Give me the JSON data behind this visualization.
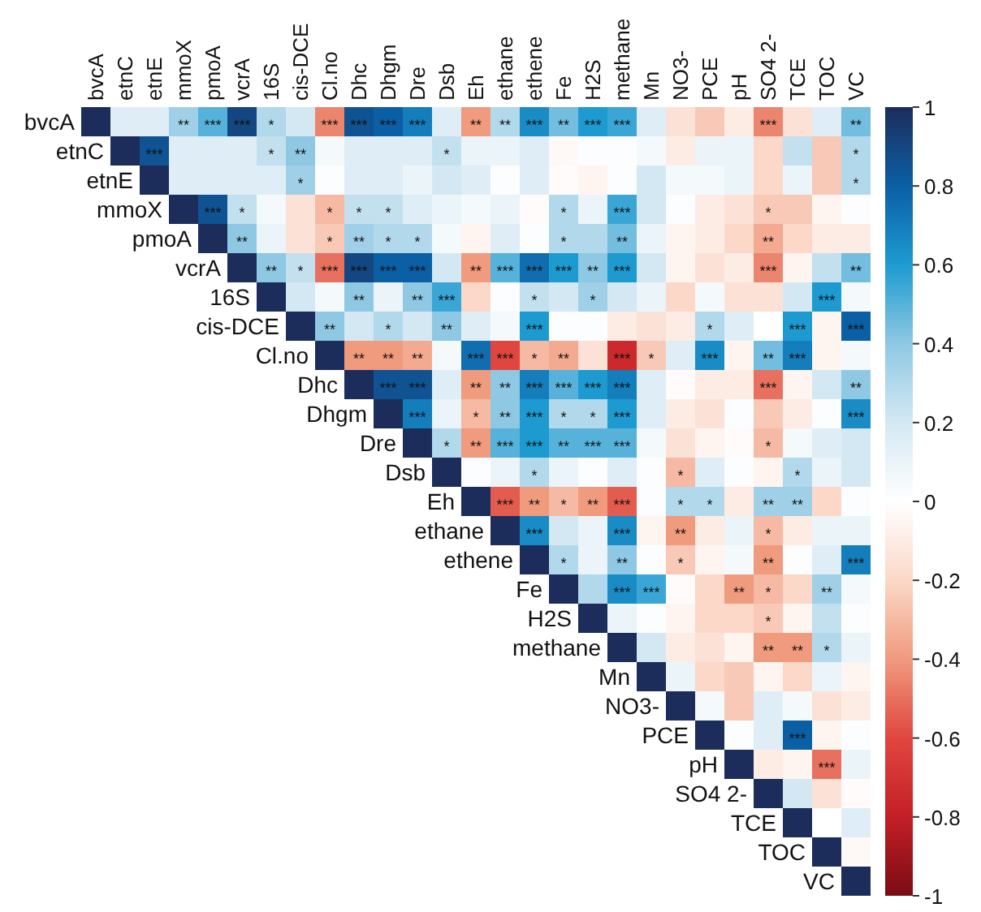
{
  "chart_data": {
    "type": "heatmap",
    "categories": [
      "bvcA",
      "etnC",
      "etnE",
      "mmoX",
      "pmoA",
      "vcrA",
      "16S",
      "cis-DCE",
      "Cl.no",
      "Dhc",
      "Dhgm",
      "Dre",
      "Dsb",
      "Eh",
      "ethane",
      "ethene",
      "Fe",
      "H2S",
      "methane",
      "Mn",
      "NO3-",
      "PCE",
      "pH",
      "SO4 2-",
      "TCE",
      "TOC",
      "VC"
    ],
    "y_categories": [
      "bvcA",
      "etnC",
      "etnE",
      "mmoX",
      "pmoA",
      "vcrA",
      "16S",
      "cis-DCE",
      "Cl.no",
      "Dhc",
      "Dhgm",
      "Dre",
      "Dsb",
      "Eh",
      "ethane",
      "ethene",
      "Fe",
      "H2S",
      "methane",
      "Mn",
      "NO3-",
      "PCE",
      "pH",
      "SO4 2-",
      "TCE",
      "TOC",
      "VC"
    ],
    "clim": [
      -1,
      1
    ],
    "cticks": [
      -1,
      -0.8,
      -0.6,
      -0.4,
      -0.2,
      0,
      0.2,
      0.4,
      0.6,
      0.8,
      1
    ],
    "cells": [
      [
        1,
        0.15,
        0.15,
        0.35,
        0.5,
        0.9,
        0.3,
        0.2,
        -0.45,
        0.85,
        0.8,
        0.7,
        0.15,
        -0.4,
        0.3,
        0.65,
        0.45,
        0.6,
        0.55,
        0.15,
        -0.15,
        -0.25,
        -0.1,
        -0.45,
        -0.15,
        0.15,
        0.45
      ],
      [
        null,
        1,
        0.85,
        0.15,
        0.15,
        0.15,
        0.25,
        0.4,
        0.05,
        0.15,
        0.15,
        0.15,
        0.25,
        0.1,
        0.1,
        0.15,
        -0.03,
        0.02,
        0.02,
        0.05,
        -0.1,
        0.1,
        0.1,
        -0.2,
        0.25,
        -0.25,
        0.3
      ],
      [
        null,
        null,
        1,
        0.15,
        0.15,
        0.15,
        0.15,
        0.35,
        0.02,
        0.15,
        0.15,
        0.1,
        0.2,
        0.15,
        0.02,
        0.15,
        -0.02,
        -0.05,
        0.02,
        0.2,
        0.05,
        0.05,
        0.1,
        -0.2,
        0.1,
        -0.25,
        0.3
      ],
      [
        null,
        null,
        null,
        1,
        0.85,
        0.25,
        0.05,
        -0.15,
        -0.3,
        0.25,
        0.25,
        0.15,
        0.1,
        0.05,
        0.1,
        -0.02,
        0.3,
        0.1,
        0.55,
        0.2,
        0.02,
        -0.1,
        -0.15,
        -0.25,
        -0.25,
        -0.05,
        0.02
      ],
      [
        null,
        null,
        null,
        null,
        1,
        0.4,
        0.1,
        -0.15,
        -0.25,
        0.35,
        0.3,
        0.3,
        0.05,
        -0.05,
        0.15,
        0.02,
        0.3,
        0.3,
        0.45,
        0.1,
        -0.05,
        -0.1,
        -0.2,
        -0.35,
        -0.2,
        -0.1,
        -0.1
      ],
      [
        null,
        null,
        null,
        null,
        null,
        1,
        0.4,
        0.25,
        -0.5,
        0.9,
        0.8,
        0.8,
        0.2,
        -0.4,
        0.5,
        0.75,
        0.6,
        0.4,
        0.6,
        0.2,
        -0.05,
        -0.15,
        -0.1,
        -0.45,
        -0.05,
        0.25,
        0.45
      ],
      [
        null,
        null,
        null,
        null,
        null,
        null,
        1,
        0.2,
        0.05,
        0.4,
        0.1,
        0.4,
        0.55,
        -0.2,
        0.02,
        0.25,
        0.2,
        0.35,
        0.2,
        0.1,
        -0.2,
        0.05,
        -0.15,
        -0.15,
        0.2,
        0.6,
        0.05
      ],
      [
        null,
        null,
        null,
        null,
        null,
        null,
        null,
        1,
        0.4,
        0.2,
        0.3,
        0.2,
        0.4,
        0.15,
        0.05,
        0.6,
        0.02,
        0.02,
        -0.1,
        -0.15,
        -0.1,
        0.3,
        0.15,
        0,
        0.6,
        -0.05,
        0.8
      ],
      [
        null,
        null,
        null,
        null,
        null,
        null,
        null,
        null,
        1,
        -0.4,
        -0.4,
        -0.35,
        0.05,
        0.75,
        -0.6,
        -0.3,
        -0.35,
        -0.15,
        -0.75,
        -0.25,
        0.15,
        0.65,
        -0.05,
        0.45,
        0.7,
        -0.05,
        0.05
      ],
      [
        null,
        null,
        null,
        null,
        null,
        null,
        null,
        null,
        null,
        1,
        0.85,
        0.85,
        0.15,
        -0.4,
        0.4,
        0.7,
        0.5,
        0.6,
        0.7,
        0.15,
        -0.02,
        -0.1,
        -0.1,
        -0.5,
        -0.05,
        0.2,
        0.4
      ],
      [
        null,
        null,
        null,
        null,
        null,
        null,
        null,
        null,
        null,
        null,
        1,
        0.7,
        0.1,
        -0.3,
        0.4,
        0.6,
        0.3,
        0.3,
        0.6,
        0.15,
        -0.1,
        -0.15,
        0.02,
        -0.25,
        -0.1,
        0.02,
        0.65
      ],
      [
        null,
        null,
        null,
        null,
        null,
        null,
        null,
        null,
        null,
        null,
        null,
        1,
        0.3,
        -0.4,
        0.5,
        0.6,
        0.5,
        0.5,
        0.5,
        0.05,
        -0.15,
        -0.05,
        -0.02,
        -0.3,
        0.05,
        0.15,
        0.2
      ],
      [
        null,
        null,
        null,
        null,
        null,
        null,
        null,
        null,
        null,
        null,
        null,
        null,
        1,
        0.02,
        0.1,
        0.3,
        0.1,
        0.02,
        0.15,
        0.02,
        -0.3,
        0.15,
        0.02,
        -0.05,
        0.3,
        0.1,
        0.2
      ],
      [
        null,
        null,
        null,
        null,
        null,
        null,
        null,
        null,
        null,
        null,
        null,
        null,
        null,
        1,
        -0.55,
        -0.4,
        -0.3,
        -0.4,
        -0.55,
        0.02,
        0.3,
        0.3,
        -0.1,
        0.35,
        0.35,
        -0.2,
        0.02
      ],
      [
        null,
        null,
        null,
        null,
        null,
        null,
        null,
        null,
        null,
        null,
        null,
        null,
        null,
        null,
        1,
        0.65,
        0.2,
        0.1,
        0.65,
        -0.05,
        -0.4,
        -0.1,
        0.1,
        -0.3,
        -0.1,
        0.1,
        0.1
      ],
      [
        null,
        null,
        null,
        null,
        null,
        null,
        null,
        null,
        null,
        null,
        null,
        null,
        null,
        null,
        null,
        1,
        0.3,
        0.1,
        0.4,
        0.02,
        -0.25,
        -0.05,
        0.05,
        -0.4,
        0.02,
        0.15,
        0.7
      ],
      [
        null,
        null,
        null,
        null,
        null,
        null,
        null,
        null,
        null,
        null,
        null,
        null,
        null,
        null,
        null,
        null,
        1,
        0.3,
        0.65,
        0.55,
        -0.02,
        -0.2,
        -0.4,
        -0.3,
        -0.2,
        0.35,
        0.05
      ],
      [
        null,
        null,
        null,
        null,
        null,
        null,
        null,
        null,
        null,
        null,
        null,
        null,
        null,
        null,
        null,
        null,
        null,
        1,
        0.1,
        0.02,
        -0.05,
        -0.2,
        -0.2,
        -0.25,
        -0.05,
        0.25,
        0.02
      ],
      [
        null,
        null,
        null,
        null,
        null,
        null,
        null,
        null,
        null,
        null,
        null,
        null,
        null,
        null,
        null,
        null,
        null,
        null,
        1,
        0.2,
        -0.1,
        -0.15,
        -0.05,
        -0.4,
        -0.4,
        0.3,
        0.1
      ],
      [
        null,
        null,
        null,
        null,
        null,
        null,
        null,
        null,
        null,
        null,
        null,
        null,
        null,
        null,
        null,
        null,
        null,
        null,
        null,
        1,
        0.1,
        -0.2,
        -0.25,
        -0.05,
        -0.2,
        0.1,
        -0.05
      ],
      [
        null,
        null,
        null,
        null,
        null,
        null,
        null,
        null,
        null,
        null,
        null,
        null,
        null,
        null,
        null,
        null,
        null,
        null,
        null,
        null,
        1,
        0.05,
        -0.25,
        0.15,
        0.05,
        -0.15,
        -0.1
      ],
      [
        null,
        null,
        null,
        null,
        null,
        null,
        null,
        null,
        null,
        null,
        null,
        null,
        null,
        null,
        null,
        null,
        null,
        null,
        null,
        null,
        null,
        1,
        0.02,
        0.15,
        0.8,
        -0.05,
        0.02
      ],
      [
        null,
        null,
        null,
        null,
        null,
        null,
        null,
        null,
        null,
        null,
        null,
        null,
        null,
        null,
        null,
        null,
        null,
        null,
        null,
        null,
        null,
        null,
        1,
        -0.1,
        -0.05,
        -0.5,
        0.1
      ],
      [
        null,
        null,
        null,
        null,
        null,
        null,
        null,
        null,
        null,
        null,
        null,
        null,
        null,
        null,
        null,
        null,
        null,
        null,
        null,
        null,
        null,
        null,
        null,
        1,
        0.2,
        -0.15,
        -0.02
      ],
      [
        null,
        null,
        null,
        null,
        null,
        null,
        null,
        null,
        null,
        null,
        null,
        null,
        null,
        null,
        null,
        null,
        null,
        null,
        null,
        null,
        null,
        null,
        null,
        null,
        1,
        0,
        0.15
      ],
      [
        null,
        null,
        null,
        null,
        null,
        null,
        null,
        null,
        null,
        null,
        null,
        null,
        null,
        null,
        null,
        null,
        null,
        null,
        null,
        null,
        null,
        null,
        null,
        null,
        null,
        1,
        -0.03
      ],
      [
        null,
        null,
        null,
        null,
        null,
        null,
        null,
        null,
        null,
        null,
        null,
        null,
        null,
        null,
        null,
        null,
        null,
        null,
        null,
        null,
        null,
        null,
        null,
        null,
        null,
        null,
        1
      ]
    ],
    "cell_labels": [
      [
        null,
        null,
        null,
        "**",
        "***",
        "***",
        "*",
        null,
        "***",
        "***",
        "***",
        "***",
        null,
        "**",
        "**",
        "***",
        "**",
        "***",
        "***",
        null,
        null,
        null,
        null,
        "***",
        null,
        null,
        "**"
      ],
      [
        null,
        null,
        "***",
        null,
        null,
        null,
        "*",
        "**",
        null,
        null,
        null,
        null,
        "*",
        null,
        null,
        null,
        null,
        null,
        null,
        null,
        null,
        null,
        null,
        null,
        null,
        null,
        "*"
      ],
      [
        null,
        null,
        null,
        null,
        null,
        null,
        null,
        "*",
        null,
        null,
        null,
        null,
        null,
        null,
        null,
        null,
        null,
        null,
        null,
        null,
        null,
        null,
        null,
        null,
        null,
        null,
        "*"
      ],
      [
        null,
        null,
        null,
        null,
        "***",
        "*",
        null,
        null,
        "*",
        "*",
        "*",
        null,
        null,
        null,
        null,
        null,
        "*",
        null,
        "***",
        null,
        null,
        null,
        null,
        "*",
        null,
        null,
        null
      ],
      [
        null,
        null,
        null,
        null,
        null,
        "**",
        null,
        null,
        "*",
        "**",
        "*",
        "*",
        null,
        null,
        null,
        null,
        "*",
        null,
        "**",
        null,
        null,
        null,
        null,
        "**",
        null,
        null,
        null
      ],
      [
        null,
        null,
        null,
        null,
        null,
        null,
        "**",
        "*",
        "***",
        "***",
        "***",
        "***",
        null,
        "**",
        "***",
        "***",
        "***",
        "**",
        "***",
        null,
        null,
        null,
        null,
        "***",
        null,
        null,
        "**"
      ],
      [
        null,
        null,
        null,
        null,
        null,
        null,
        null,
        null,
        null,
        "**",
        null,
        "**",
        "***",
        null,
        null,
        "*",
        null,
        "*",
        null,
        null,
        null,
        null,
        null,
        null,
        null,
        "***",
        null
      ],
      [
        null,
        null,
        null,
        null,
        null,
        null,
        null,
        null,
        "**",
        null,
        "*",
        null,
        "**",
        null,
        null,
        "***",
        null,
        null,
        null,
        null,
        null,
        "*",
        null,
        null,
        "***",
        null,
        "***"
      ],
      [
        null,
        null,
        null,
        null,
        null,
        null,
        null,
        null,
        null,
        "**",
        "**",
        "**",
        null,
        "***",
        "***",
        "*",
        "**",
        null,
        "***",
        "*",
        null,
        "***",
        null,
        "**",
        "***",
        null,
        null
      ],
      [
        null,
        null,
        null,
        null,
        null,
        null,
        null,
        null,
        null,
        null,
        "***",
        "***",
        null,
        "**",
        "**",
        "***",
        "***",
        "***",
        "***",
        null,
        null,
        null,
        null,
        "***",
        null,
        null,
        "**"
      ],
      [
        null,
        null,
        null,
        null,
        null,
        null,
        null,
        null,
        null,
        null,
        null,
        "***",
        null,
        "*",
        "**",
        "***",
        "*",
        "*",
        "***",
        null,
        null,
        null,
        null,
        null,
        null,
        null,
        "***"
      ],
      [
        null,
        null,
        null,
        null,
        null,
        null,
        null,
        null,
        null,
        null,
        null,
        null,
        "*",
        "**",
        "***",
        "***",
        "**",
        "***",
        "***",
        null,
        null,
        null,
        null,
        "*",
        null,
        null,
        null
      ],
      [
        null,
        null,
        null,
        null,
        null,
        null,
        null,
        null,
        null,
        null,
        null,
        null,
        null,
        null,
        null,
        "*",
        null,
        null,
        null,
        null,
        "*",
        null,
        null,
        null,
        "*",
        null,
        null
      ],
      [
        null,
        null,
        null,
        null,
        null,
        null,
        null,
        null,
        null,
        null,
        null,
        null,
        null,
        null,
        "***",
        "**",
        "*",
        "**",
        "***",
        null,
        "*",
        "*",
        null,
        "**",
        "**",
        null,
        null
      ],
      [
        null,
        null,
        null,
        null,
        null,
        null,
        null,
        null,
        null,
        null,
        null,
        null,
        null,
        null,
        null,
        "***",
        null,
        null,
        "***",
        null,
        "**",
        null,
        null,
        "*",
        null,
        null,
        null
      ],
      [
        null,
        null,
        null,
        null,
        null,
        null,
        null,
        null,
        null,
        null,
        null,
        null,
        null,
        null,
        null,
        null,
        "*",
        null,
        "**",
        null,
        "*",
        null,
        null,
        "**",
        null,
        null,
        "***"
      ],
      [
        null,
        null,
        null,
        null,
        null,
        null,
        null,
        null,
        null,
        null,
        null,
        null,
        null,
        null,
        null,
        null,
        null,
        null,
        "***",
        "***",
        null,
        null,
        "**",
        "*",
        null,
        "**",
        null
      ],
      [
        null,
        null,
        null,
        null,
        null,
        null,
        null,
        null,
        null,
        null,
        null,
        null,
        null,
        null,
        null,
        null,
        null,
        null,
        null,
        null,
        null,
        null,
        null,
        "*",
        null,
        null,
        null
      ],
      [
        null,
        null,
        null,
        null,
        null,
        null,
        null,
        null,
        null,
        null,
        null,
        null,
        null,
        null,
        null,
        null,
        null,
        null,
        null,
        null,
        null,
        null,
        null,
        "**",
        "**",
        "*",
        null
      ],
      [
        null,
        null,
        null,
        null,
        null,
        null,
        null,
        null,
        null,
        null,
        null,
        null,
        null,
        null,
        null,
        null,
        null,
        null,
        null,
        null,
        null,
        null,
        null,
        null,
        null,
        null,
        null
      ],
      [
        null,
        null,
        null,
        null,
        null,
        null,
        null,
        null,
        null,
        null,
        null,
        null,
        null,
        null,
        null,
        null,
        null,
        null,
        null,
        null,
        null,
        null,
        null,
        null,
        null,
        null,
        null
      ],
      [
        null,
        null,
        null,
        null,
        null,
        null,
        null,
        null,
        null,
        null,
        null,
        null,
        null,
        null,
        null,
        null,
        null,
        null,
        null,
        null,
        null,
        null,
        null,
        null,
        "***",
        null,
        null
      ],
      [
        null,
        null,
        null,
        null,
        null,
        null,
        null,
        null,
        null,
        null,
        null,
        null,
        null,
        null,
        null,
        null,
        null,
        null,
        null,
        null,
        null,
        null,
        null,
        null,
        null,
        "***",
        null
      ],
      [
        null,
        null,
        null,
        null,
        null,
        null,
        null,
        null,
        null,
        null,
        null,
        null,
        null,
        null,
        null,
        null,
        null,
        null,
        null,
        null,
        null,
        null,
        null,
        null,
        null,
        null,
        null
      ],
      [
        null,
        null,
        null,
        null,
        null,
        null,
        null,
        null,
        null,
        null,
        null,
        null,
        null,
        null,
        null,
        null,
        null,
        null,
        null,
        null,
        null,
        null,
        null,
        null,
        null,
        null,
        null
      ],
      [
        null,
        null,
        null,
        null,
        null,
        null,
        null,
        null,
        null,
        null,
        null,
        null,
        null,
        null,
        null,
        null,
        null,
        null,
        null,
        null,
        null,
        null,
        null,
        null,
        null,
        null,
        null
      ],
      [
        null,
        null,
        null,
        null,
        null,
        null,
        null,
        null,
        null,
        null,
        null,
        null,
        null,
        null,
        null,
        null,
        null,
        null,
        null,
        null,
        null,
        null,
        null,
        null,
        null,
        null,
        null
      ]
    ]
  }
}
